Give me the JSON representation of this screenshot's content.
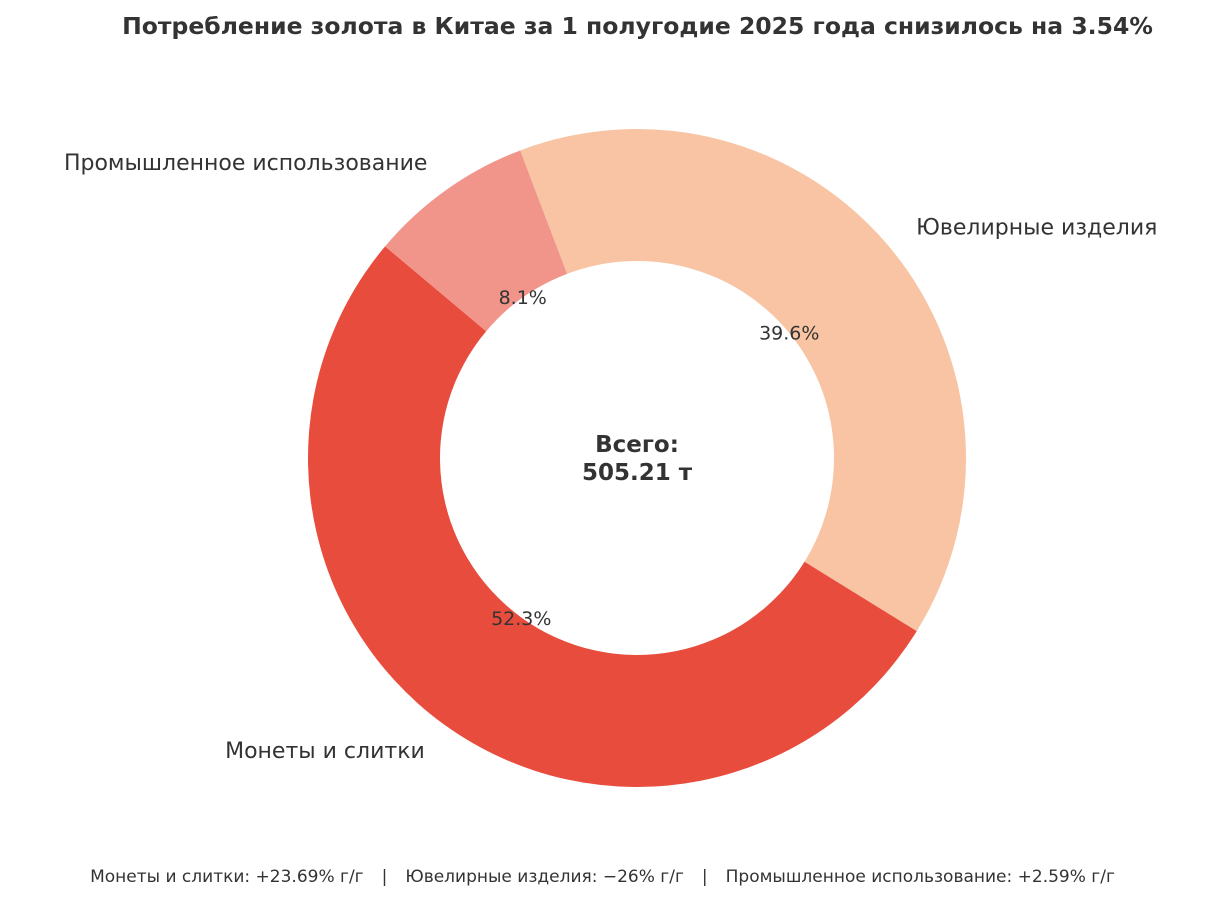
{
  "chart_data": {
    "type": "pie",
    "donut": true,
    "title": "Потребление золота в Китае за 1 полугодие 2025 года снизилось на 3.54%",
    "center_label": [
      "Всего:",
      "505.21 т"
    ],
    "slices": [
      {
        "label": "Ювелирные изделия",
        "percent": 39.6,
        "pct_label": "39.6%",
        "color": "#F8C4A3"
      },
      {
        "label": "Монеты и слитки",
        "percent": 52.3,
        "pct_label": "52.3%",
        "color": "#E84C3D"
      },
      {
        "label": "Промышленное использование",
        "percent": 8.1,
        "pct_label": "8.1%",
        "color": "#F1948A"
      }
    ],
    "start_angle_deg_clockwise_from_top": -20.8,
    "direction": "clockwise"
  },
  "footer": {
    "items": [
      "Монеты и слитки: +23.69% г/г",
      "Ювелирные изделия: −26% г/г",
      "Промышленное использование: +2.59% г/г"
    ],
    "separator": "|"
  }
}
